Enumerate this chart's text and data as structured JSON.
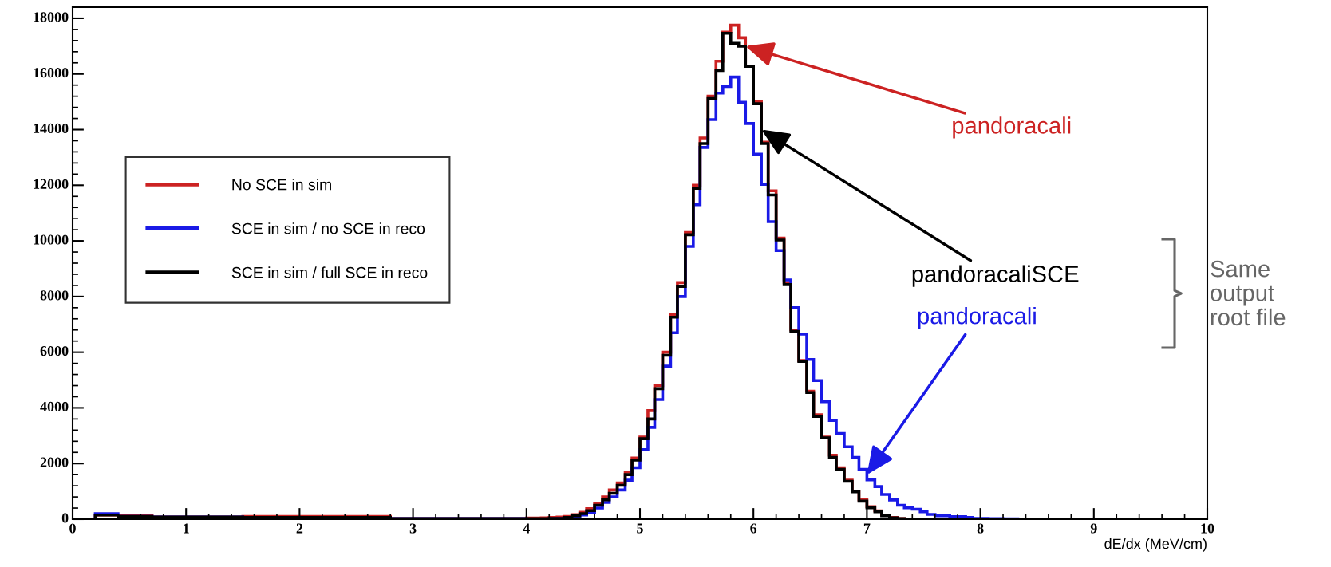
{
  "chart_data": {
    "type": "histogram",
    "xlabel": "dE/dx (MeV/cm)",
    "bins": [
      0.2,
      0.4,
      0.7,
      1.5,
      2.8,
      4.0,
      4.07,
      4.13,
      4.2,
      4.27,
      4.33,
      4.4,
      4.47,
      4.53,
      4.6,
      4.67,
      4.73,
      4.8,
      4.87,
      4.93,
      5.0,
      5.07,
      5.13,
      5.2,
      5.27,
      5.33,
      5.4,
      5.47,
      5.53,
      5.6,
      5.67,
      5.73,
      5.8,
      5.87,
      5.93,
      6.0,
      6.07,
      6.13,
      6.2,
      6.27,
      6.33,
      6.4,
      6.47,
      6.53,
      6.6,
      6.67,
      6.73,
      6.8,
      6.87,
      6.93,
      7.0,
      7.07,
      7.13,
      7.2,
      7.27,
      7.33,
      7.4,
      7.47,
      7.53,
      7.6,
      7.67,
      7.73,
      7.8,
      7.87,
      7.93,
      8.0,
      8.07,
      8.13,
      8.2,
      8.27,
      8.33,
      8.4
    ],
    "series": [
      {
        "name": "No SCE in sim",
        "color": "#cc2222",
        "values": [
          150,
          150,
          80,
          100,
          20,
          40,
          40,
          50,
          60,
          80,
          100,
          160,
          250,
          380,
          580,
          800,
          1050,
          1300,
          1700,
          2200,
          2950,
          3900,
          4800,
          6000,
          7350,
          8500,
          10300,
          12000,
          13700,
          15200,
          16460,
          17500,
          17750,
          17300,
          16270,
          15000,
          13550,
          11800,
          10100,
          8500,
          6800,
          5700,
          4600,
          3750,
          2950,
          2300,
          1850,
          1400,
          1000,
          700,
          450,
          300,
          150,
          60,
          20,
          0,
          0,
          0,
          0,
          0,
          0,
          0,
          0,
          0,
          0,
          0,
          0,
          0,
          0,
          0,
          0
        ]
      },
      {
        "name": "SCE in sim / no SCE in reco",
        "color": "#1a1ae6",
        "values": [
          200,
          100,
          80,
          60,
          20,
          0,
          0,
          0,
          10,
          20,
          40,
          80,
          150,
          250,
          400,
          600,
          800,
          1050,
          1400,
          1850,
          2500,
          3300,
          4300,
          5500,
          6700,
          8000,
          9800,
          11300,
          13360,
          14360,
          15310,
          15550,
          15890,
          14980,
          14220,
          13120,
          12030,
          10690,
          9650,
          8600,
          7600,
          6650,
          5740,
          4980,
          4220,
          3550,
          3080,
          2600,
          2220,
          1790,
          1410,
          1170,
          890,
          690,
          500,
          410,
          360,
          270,
          170,
          120,
          120,
          90,
          90,
          60,
          30,
          30,
          20,
          20,
          10,
          10,
          0
        ]
      },
      {
        "name": "SCE in sim / full SCE in reco",
        "color": "#000000",
        "values": [
          150,
          100,
          80,
          60,
          20,
          20,
          20,
          20,
          30,
          30,
          60,
          120,
          200,
          310,
          500,
          700,
          930,
          1220,
          1600,
          2120,
          2890,
          3600,
          4690,
          5890,
          7260,
          8360,
          10220,
          11890,
          13500,
          15120,
          16120,
          17460,
          17100,
          17000,
          16270,
          14930,
          13500,
          11650,
          10030,
          8430,
          6750,
          5670,
          4550,
          3690,
          2920,
          2220,
          1790,
          1360,
          980,
          650,
          410,
          270,
          120,
          50,
          20,
          0,
          0,
          0,
          0,
          0,
          0,
          0,
          0,
          0,
          0,
          0,
          0,
          0,
          0,
          0,
          0
        ]
      }
    ],
    "xlim": [
      0,
      10
    ],
    "ylim": [
      0,
      18400
    ],
    "xticks": [
      0,
      1,
      2,
      3,
      4,
      5,
      6,
      7,
      8,
      9,
      10
    ],
    "yticks": [
      0,
      2000,
      4000,
      6000,
      8000,
      10000,
      12000,
      14000,
      16000,
      18000
    ],
    "grid": false,
    "legend": "center left",
    "annotations": [
      {
        "text": "pandoracali",
        "x": 5.93,
        "y": 17000
      },
      {
        "text": "pandoracali",
        "x": 7.0,
        "y": 1600
      },
      {
        "text": "pandoracaliSCE",
        "x": 6.07,
        "y": 14000
      },
      "Same\noutput\nroot file"
    ]
  }
}
